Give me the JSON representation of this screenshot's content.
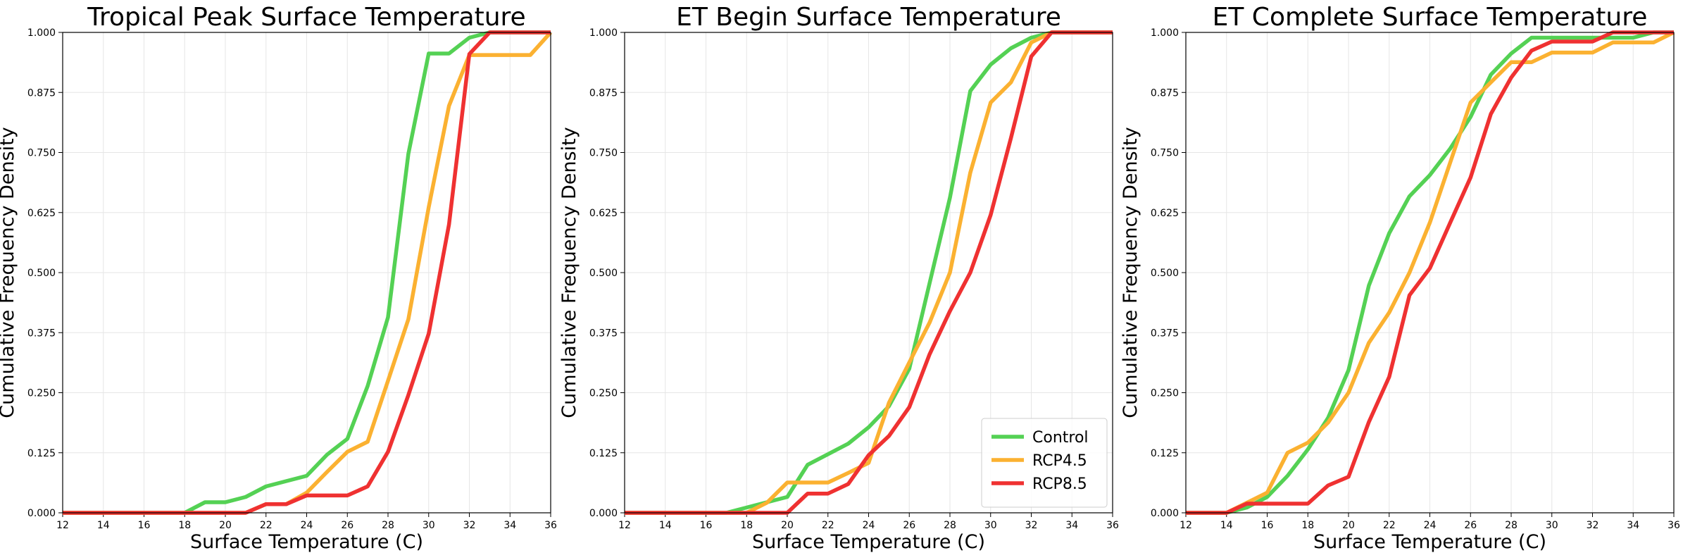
{
  "colors": {
    "Control": "#54d154",
    "RCP4.5": "#fbb131",
    "RCP8.5": "#ef3131",
    "grid": "#e6e6e6",
    "axis": "#000000"
  },
  "chart_data": [
    {
      "type": "line",
      "title": "Tropical Peak Surface Temperature",
      "xlabel": "Surface Temperature (C)",
      "ylabel": "Cumulative Frequency Density",
      "xlim": [
        12,
        36
      ],
      "ylim": [
        0,
        1
      ],
      "xticks": [
        "12",
        "14",
        "16",
        "18",
        "20",
        "22",
        "24",
        "26",
        "28",
        "30",
        "32",
        "34",
        "36"
      ],
      "yticks": [
        "0.000",
        "0.125",
        "0.250",
        "0.375",
        "0.500",
        "0.625",
        "0.750",
        "0.875",
        "1.000"
      ],
      "grid": true,
      "legend": null,
      "series": [
        {
          "name": "Control",
          "x": [
            12,
            18,
            19,
            20,
            21,
            22,
            23,
            24,
            25,
            26,
            27,
            28,
            29,
            30,
            31,
            32,
            33,
            36
          ],
          "y": [
            0,
            0,
            0.022,
            0.022,
            0.033,
            0.055,
            0.066,
            0.077,
            0.121,
            0.154,
            0.264,
            0.407,
            0.747,
            0.956,
            0.956,
            0.989,
            1.0,
            1.0
          ]
        },
        {
          "name": "RCP4.5",
          "x": [
            12,
            21,
            22,
            23,
            24,
            25,
            26,
            27,
            28,
            29,
            30,
            31,
            32,
            33,
            34,
            35,
            36
          ],
          "y": [
            0,
            0,
            0.018,
            0.018,
            0.042,
            0.085,
            0.127,
            0.148,
            0.275,
            0.403,
            0.636,
            0.847,
            0.953,
            0.953,
            0.953,
            0.953,
            1.0
          ]
        },
        {
          "name": "RCP8.5",
          "x": [
            12,
            21,
            22,
            23,
            24,
            25,
            26,
            27,
            28,
            29,
            30,
            31,
            32,
            33,
            36
          ],
          "y": [
            0,
            0,
            0.018,
            0.018,
            0.036,
            0.036,
            0.036,
            0.055,
            0.127,
            0.245,
            0.373,
            0.6,
            0.955,
            1.0,
            1.0
          ]
        }
      ]
    },
    {
      "type": "line",
      "title": "ET Begin Surface Temperature",
      "xlabel": "Surface Temperature (C)",
      "ylabel": "Cumulative Frequency Density",
      "xlim": [
        12,
        36
      ],
      "ylim": [
        0,
        1
      ],
      "xticks": [
        "12",
        "14",
        "16",
        "18",
        "20",
        "22",
        "24",
        "26",
        "28",
        "30",
        "32",
        "34",
        "36"
      ],
      "yticks": [
        "0.000",
        "0.125",
        "0.250",
        "0.375",
        "0.500",
        "0.625",
        "0.750",
        "0.875",
        "1.000"
      ],
      "grid": true,
      "legend": "lower right",
      "series": [
        {
          "name": "Control",
          "x": [
            12,
            17,
            18,
            19,
            20,
            21,
            22,
            23,
            24,
            25,
            26,
            27,
            28,
            29,
            30,
            31,
            32,
            33,
            36
          ],
          "y": [
            0,
            0,
            0.011,
            0.022,
            0.033,
            0.1,
            0.122,
            0.144,
            0.178,
            0.222,
            0.3,
            0.478,
            0.656,
            0.878,
            0.933,
            0.967,
            0.989,
            1.0,
            1.0
          ]
        },
        {
          "name": "RCP4.5",
          "x": [
            12,
            18,
            19,
            20,
            21,
            22,
            23,
            24,
            25,
            26,
            27,
            28,
            29,
            30,
            31,
            32,
            33,
            36
          ],
          "y": [
            0,
            0,
            0.021,
            0.063,
            0.063,
            0.063,
            0.083,
            0.104,
            0.229,
            0.313,
            0.396,
            0.5,
            0.708,
            0.854,
            0.896,
            0.979,
            1.0,
            1.0
          ]
        },
        {
          "name": "RCP8.5",
          "x": [
            12,
            20,
            21,
            22,
            23,
            24,
            25,
            26,
            27,
            28,
            29,
            30,
            31,
            32,
            33,
            36
          ],
          "y": [
            0,
            0,
            0.04,
            0.04,
            0.06,
            0.12,
            0.16,
            0.22,
            0.33,
            0.42,
            0.5,
            0.62,
            0.78,
            0.95,
            1.0,
            1.0
          ]
        }
      ]
    },
    {
      "type": "line",
      "title": "ET Complete Surface Temperature",
      "xlabel": "Surface Temperature (C)",
      "ylabel": "Cumulative Frequency Density",
      "xlim": [
        12,
        36
      ],
      "ylim": [
        0,
        1
      ],
      "xticks": [
        "12",
        "14",
        "16",
        "18",
        "20",
        "22",
        "24",
        "26",
        "28",
        "30",
        "32",
        "34",
        "36"
      ],
      "yticks": [
        "0.000",
        "0.125",
        "0.250",
        "0.375",
        "0.500",
        "0.625",
        "0.750",
        "0.875",
        "1.000"
      ],
      "grid": true,
      "legend": null,
      "series": [
        {
          "name": "Control",
          "x": [
            12,
            14,
            15,
            16,
            17,
            18,
            19,
            20,
            21,
            22,
            23,
            24,
            25,
            26,
            27,
            28,
            29,
            30,
            31,
            32,
            33,
            34,
            35,
            36
          ],
          "y": [
            0,
            0,
            0.011,
            0.033,
            0.077,
            0.132,
            0.198,
            0.297,
            0.473,
            0.582,
            0.659,
            0.703,
            0.758,
            0.824,
            0.912,
            0.956,
            0.989,
            0.989,
            0.989,
            0.989,
            0.989,
            0.989,
            1.0,
            1.0
          ]
        },
        {
          "name": "RCP4.5",
          "x": [
            12,
            14,
            15,
            16,
            17,
            18,
            19,
            20,
            21,
            22,
            23,
            24,
            25,
            26,
            27,
            28,
            29,
            30,
            31,
            32,
            33,
            34,
            35,
            36
          ],
          "y": [
            0,
            0,
            0.021,
            0.042,
            0.125,
            0.146,
            0.188,
            0.25,
            0.354,
            0.417,
            0.5,
            0.604,
            0.729,
            0.854,
            0.896,
            0.938,
            0.938,
            0.958,
            0.958,
            0.958,
            0.979,
            0.979,
            0.979,
            1.0
          ]
        },
        {
          "name": "RCP8.5",
          "x": [
            12,
            14,
            15,
            16,
            17,
            18,
            19,
            20,
            21,
            22,
            23,
            24,
            25,
            26,
            27,
            28,
            29,
            30,
            31,
            32,
            33,
            36
          ],
          "y": [
            0,
            0,
            0.019,
            0.019,
            0.019,
            0.019,
            0.057,
            0.075,
            0.189,
            0.283,
            0.453,
            0.509,
            0.604,
            0.698,
            0.83,
            0.906,
            0.962,
            0.981,
            0.981,
            0.981,
            1.0,
            1.0
          ]
        }
      ]
    }
  ]
}
